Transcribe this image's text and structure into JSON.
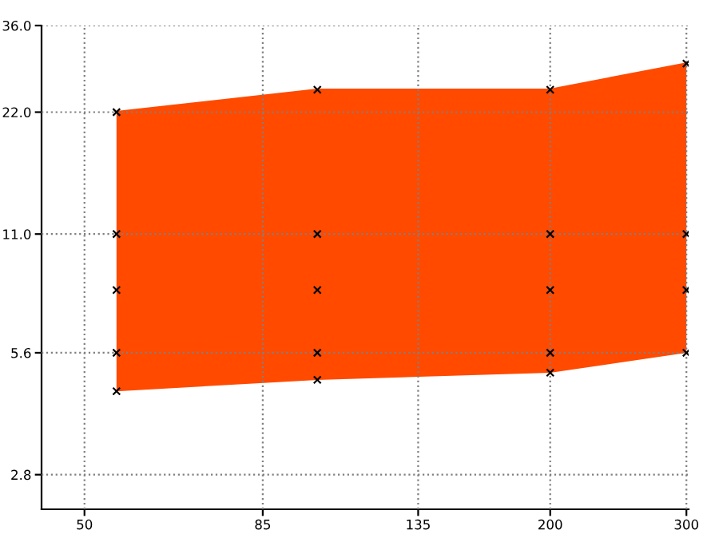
{
  "chart_data": {
    "type": "line",
    "log": "xy",
    "xlim": [
      44,
      302
    ],
    "ylim": [
      2.3,
      36
    ],
    "xticks": [
      50,
      85,
      135,
      200,
      300
    ],
    "yticks": [
      {
        "value": 36,
        "label": "36.0"
      },
      {
        "value": 22,
        "label": "22.0"
      },
      {
        "value": 11,
        "label": "11.0"
      },
      {
        "value": 5.6,
        "label": "5.6"
      },
      {
        "value": 2.8,
        "label": "2.8"
      }
    ],
    "grid": true,
    "legend": false,
    "series": [
      {
        "x": [
          55,
          100,
          200,
          300
        ],
        "values": [
          22,
          25,
          25,
          29
        ],
        "lower": [
          4.5,
          4.8,
          5.0,
          5.6
        ],
        "upper": [
          22,
          25,
          25,
          29
        ],
        "color": "#ff4a00"
      },
      {
        "type": "scatter",
        "marker": "cross",
        "color": "#000000",
        "x": [
          55,
          55,
          55,
          55,
          55,
          100,
          100,
          100,
          100,
          100,
          200,
          200,
          200,
          200,
          200,
          300,
          300,
          300,
          300
        ],
        "values": [
          22,
          11,
          8,
          5.6,
          4.5,
          25,
          11,
          8,
          5.6,
          4.8,
          25,
          11,
          8,
          5.6,
          5.0,
          29,
          11,
          8,
          5.6
        ]
      }
    ]
  }
}
